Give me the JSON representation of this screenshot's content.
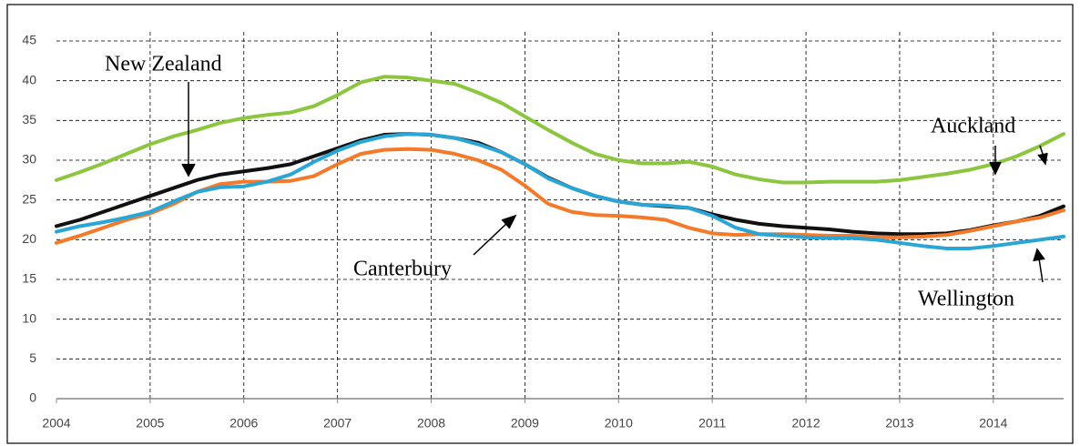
{
  "chart_data": {
    "type": "line",
    "x": [
      2004,
      2004.25,
      2004.5,
      2004.75,
      2005,
      2005.25,
      2005.5,
      2005.75,
      2006,
      2006.25,
      2006.5,
      2006.75,
      2007,
      2007.25,
      2007.5,
      2007.75,
      2008,
      2008.25,
      2008.5,
      2008.75,
      2009,
      2009.25,
      2009.5,
      2009.75,
      2010,
      2010.25,
      2010.5,
      2010.75,
      2011,
      2011.25,
      2011.5,
      2011.75,
      2012,
      2012.25,
      2012.5,
      2012.75,
      2013,
      2013.25,
      2013.5,
      2013.75,
      2014,
      2014.25,
      2014.5,
      2014.75
    ],
    "series": [
      {
        "name": "Auckland",
        "color": "#8cc63f",
        "values": [
          27.5,
          28.5,
          29.6,
          30.8,
          32,
          33,
          33.8,
          34.7,
          35.3,
          35.7,
          36,
          36.8,
          38.2,
          39.8,
          40.5,
          40.4,
          40,
          39.6,
          38.5,
          37.2,
          35.5,
          33.8,
          32.2,
          30.8,
          30,
          29.6,
          29.6,
          29.8,
          29.2,
          28.2,
          27.6,
          27.2,
          27.2,
          27.3,
          27.3,
          27.3,
          27.5,
          27.9,
          28.3,
          28.8,
          29.5,
          30.5,
          31.8,
          33.3
        ]
      },
      {
        "name": "New Zealand",
        "color": "#111111",
        "values": [
          21.7,
          22.5,
          23.5,
          24.5,
          25.5,
          26.5,
          27.5,
          28.2,
          28.6,
          29,
          29.5,
          30.5,
          31.5,
          32.5,
          33.2,
          33.3,
          33.2,
          32.8,
          32.2,
          31,
          29.5,
          27.8,
          26.5,
          25.5,
          24.8,
          24.4,
          24.2,
          24,
          23.2,
          22.5,
          22,
          21.7,
          21.5,
          21.3,
          21,
          20.8,
          20.7,
          20.7,
          20.8,
          21.2,
          21.8,
          22.3,
          23,
          24.2
        ]
      },
      {
        "name": "Canterbury",
        "color": "#f47a2a",
        "values": [
          19.6,
          20.5,
          21.5,
          22.5,
          23.3,
          24.5,
          26,
          27,
          27.3,
          27.3,
          27.4,
          28,
          29.5,
          30.8,
          31.3,
          31.4,
          31.3,
          30.8,
          30,
          28.8,
          26.8,
          24.5,
          23.5,
          23.1,
          23,
          22.8,
          22.5,
          21.5,
          20.8,
          20.6,
          20.7,
          20.7,
          20.6,
          20.5,
          20.5,
          20.3,
          20.3,
          20.4,
          20.6,
          21.1,
          21.7,
          22.3,
          22.8,
          23.7
        ]
      },
      {
        "name": "Wellington",
        "color": "#2aa6d6",
        "values": [
          21,
          21.7,
          22.2,
          22.8,
          23.5,
          24.8,
          26,
          26.6,
          26.7,
          27.3,
          28.2,
          29.8,
          31.2,
          32.3,
          33,
          33.3,
          33.2,
          32.8,
          32,
          31,
          29.5,
          27.7,
          26.5,
          25.5,
          24.8,
          24.4,
          24.3,
          24,
          23,
          21.5,
          20.7,
          20.5,
          20.3,
          20.2,
          20.2,
          20,
          19.6,
          19.2,
          18.9,
          18.9,
          19.2,
          19.6,
          20,
          20.4
        ]
      }
    ],
    "xlim": [
      2004,
      2014.75
    ],
    "xticks": [
      2004,
      2005,
      2006,
      2007,
      2008,
      2009,
      2010,
      2011,
      2012,
      2013,
      2014
    ],
    "ylim": [
      0,
      45
    ],
    "yticks": [
      0,
      5,
      10,
      15,
      20,
      25,
      30,
      35,
      40,
      45
    ],
    "grid": true
  }
}
